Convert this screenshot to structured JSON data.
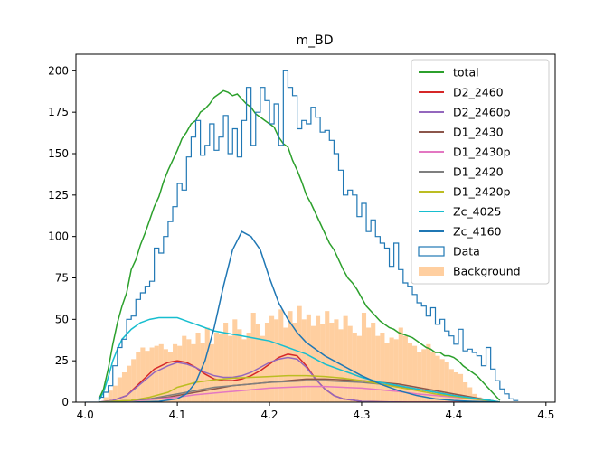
{
  "chart_data": {
    "type": "line",
    "title": "m_BD",
    "xlabel": "",
    "ylabel": "",
    "xlim": [
      3.99,
      4.51
    ],
    "ylim": [
      0,
      210
    ],
    "xticks": [
      "4.0",
      "4.1",
      "4.2",
      "4.3",
      "4.4",
      "4.5"
    ],
    "yticks": [
      "0",
      "25",
      "50",
      "75",
      "100",
      "125",
      "150",
      "175",
      "200"
    ],
    "grid": false,
    "legend_position": "top-right",
    "series": [
      {
        "name": "total",
        "color": "#2ca02c",
        "kind": "line",
        "x": [
          4.015,
          4.02,
          4.025,
          4.03,
          4.035,
          4.04,
          4.045,
          4.05,
          4.055,
          4.06,
          4.065,
          4.07,
          4.075,
          4.08,
          4.085,
          4.09,
          4.095,
          4.1,
          4.105,
          4.11,
          4.115,
          4.12,
          4.125,
          4.13,
          4.135,
          4.14,
          4.145,
          4.15,
          4.155,
          4.16,
          4.165,
          4.17,
          4.175,
          4.18,
          4.185,
          4.19,
          4.195,
          4.2,
          4.205,
          4.21,
          4.215,
          4.22,
          4.225,
          4.23,
          4.235,
          4.24,
          4.245,
          4.25,
          4.255,
          4.26,
          4.265,
          4.27,
          4.275,
          4.28,
          4.285,
          4.29,
          4.295,
          4.3,
          4.305,
          4.31,
          4.315,
          4.32,
          4.325,
          4.33,
          4.335,
          4.34,
          4.345,
          4.35,
          4.355,
          4.36,
          4.365,
          4.37,
          4.375,
          4.38,
          4.385,
          4.39,
          4.395,
          4.4,
          4.405,
          4.41,
          4.415,
          4.42,
          4.425,
          4.43,
          4.435,
          4.44,
          4.445,
          4.45
        ],
        "y": [
          2,
          8,
          20,
          35,
          48,
          58,
          66,
          80,
          86,
          95,
          102,
          110,
          118,
          124,
          133,
          140,
          146,
          152,
          159,
          163,
          168,
          170,
          175,
          177,
          180,
          184,
          186,
          188,
          187,
          185,
          186,
          183,
          180,
          178,
          174,
          172,
          170,
          168,
          166,
          160,
          156,
          154,
          146,
          140,
          133,
          125,
          120,
          114,
          108,
          102,
          96,
          92,
          86,
          80,
          75,
          72,
          68,
          63,
          58,
          55,
          52,
          49,
          47,
          45,
          44,
          42,
          41,
          40,
          39,
          37,
          35,
          33,
          32,
          30,
          30,
          28,
          28,
          27,
          25,
          22,
          20,
          18,
          16,
          13,
          10,
          7,
          4,
          1
        ]
      },
      {
        "name": "D2_2460",
        "color": "#d62728",
        "kind": "line",
        "x": [
          4.015,
          4.03,
          4.045,
          4.06,
          4.075,
          4.09,
          4.1,
          4.11,
          4.12,
          4.13,
          4.14,
          4.15,
          4.16,
          4.17,
          4.18,
          4.19,
          4.2,
          4.21,
          4.22,
          4.23,
          4.24,
          4.25,
          4.26,
          4.27,
          4.28,
          4.3,
          4.32,
          4.35,
          4.4,
          4.45
        ],
        "y": [
          0,
          1,
          4,
          12,
          20,
          24,
          25,
          24,
          21,
          17,
          14,
          13,
          13,
          14,
          16,
          19,
          23,
          27,
          29,
          28,
          22,
          14,
          8,
          4,
          2,
          0.5,
          0.2,
          0,
          0,
          0
        ]
      },
      {
        "name": "D2_2460p",
        "color": "#9467bd",
        "kind": "line",
        "x": [
          4.015,
          4.03,
          4.045,
          4.06,
          4.075,
          4.09,
          4.1,
          4.11,
          4.12,
          4.13,
          4.14,
          4.15,
          4.16,
          4.17,
          4.18,
          4.19,
          4.2,
          4.21,
          4.22,
          4.23,
          4.24,
          4.25,
          4.26,
          4.27,
          4.28,
          4.3,
          4.32,
          4.35,
          4.4,
          4.45
        ],
        "y": [
          0,
          1,
          4,
          11,
          18,
          22,
          24,
          23,
          21,
          18,
          16,
          15,
          15,
          16,
          18,
          21,
          24,
          26,
          27,
          26,
          21,
          14,
          8,
          4,
          2,
          0.5,
          0.2,
          0,
          0,
          0
        ]
      },
      {
        "name": "D1_2430",
        "color": "#8c564b",
        "kind": "line",
        "x": [
          4.015,
          4.03,
          4.05,
          4.07,
          4.09,
          4.1,
          4.12,
          4.14,
          4.16,
          4.18,
          4.2,
          4.22,
          4.24,
          4.26,
          4.28,
          4.3,
          4.32,
          4.34,
          4.36,
          4.38,
          4.4,
          4.42,
          4.44,
          4.45
        ],
        "y": [
          0,
          0.5,
          1,
          2,
          3,
          4,
          6,
          8,
          10,
          11,
          12,
          13,
          14,
          14,
          13.5,
          13,
          12,
          11,
          9,
          7,
          5,
          3,
          1,
          0
        ]
      },
      {
        "name": "D1_2430p",
        "color": "#e377c2",
        "kind": "line",
        "x": [
          4.015,
          4.03,
          4.05,
          4.07,
          4.09,
          4.1,
          4.12,
          4.14,
          4.16,
          4.18,
          4.2,
          4.22,
          4.24,
          4.26,
          4.28,
          4.3,
          4.32,
          4.34,
          4.36,
          4.38,
          4.4,
          4.42,
          4.44,
          4.45
        ],
        "y": [
          0,
          0.3,
          0.8,
          1.5,
          2.5,
          3,
          4.5,
          5.5,
          6.5,
          7.5,
          8.5,
          9,
          9.5,
          9.5,
          9,
          8.5,
          7.5,
          6.5,
          5,
          4,
          3,
          2,
          0.8,
          0
        ]
      },
      {
        "name": "D1_2420",
        "color": "#7f7f7f",
        "kind": "line",
        "x": [
          4.015,
          4.03,
          4.05,
          4.07,
          4.09,
          4.1,
          4.12,
          4.14,
          4.16,
          4.18,
          4.2,
          4.22,
          4.24,
          4.26,
          4.28,
          4.3,
          4.32,
          4.34,
          4.36,
          4.38,
          4.4,
          4.42,
          4.44,
          4.45
        ],
        "y": [
          0,
          0.5,
          1,
          2,
          4,
          5,
          7,
          9,
          10,
          11,
          12,
          12.5,
          13,
          13,
          12.5,
          12,
          11,
          9.5,
          8,
          6,
          4,
          2.5,
          1,
          0
        ]
      },
      {
        "name": "D1_2420p",
        "color": "#bcbd22",
        "kind": "line",
        "x": [
          4.015,
          4.03,
          4.05,
          4.07,
          4.09,
          4.1,
          4.12,
          4.14,
          4.16,
          4.18,
          4.2,
          4.22,
          4.24,
          4.26,
          4.28,
          4.3,
          4.32,
          4.34,
          4.36,
          4.38,
          4.4,
          4.42,
          4.44,
          4.45
        ],
        "y": [
          0,
          0.5,
          1,
          3,
          6,
          9,
          12,
          13.5,
          14.5,
          15,
          15.5,
          16,
          16,
          15.5,
          14.5,
          13,
          11,
          9,
          7,
          5,
          3.5,
          2,
          0.8,
          0
        ]
      },
      {
        "name": "Zc_4025",
        "color": "#17becf",
        "kind": "line",
        "x": [
          4.015,
          4.02,
          4.025,
          4.03,
          4.035,
          4.04,
          4.05,
          4.06,
          4.07,
          4.08,
          4.09,
          4.1,
          4.11,
          4.12,
          4.13,
          4.14,
          4.15,
          4.16,
          4.17,
          4.18,
          4.19,
          4.2,
          4.21,
          4.22,
          4.23,
          4.24,
          4.25,
          4.26,
          4.27,
          4.28,
          4.3,
          4.32,
          4.34,
          4.36,
          4.38,
          4.4,
          4.42,
          4.44,
          4.45
        ],
        "y": [
          1,
          6,
          15,
          25,
          32,
          38,
          44,
          48,
          50,
          51,
          51,
          51,
          49,
          47,
          45,
          43,
          42,
          41,
          40,
          39,
          38,
          37,
          35,
          33,
          31,
          29,
          26,
          23,
          21,
          19,
          15,
          12,
          10,
          8,
          6,
          4,
          2.5,
          1,
          0
        ]
      },
      {
        "name": "Zc_4160",
        "color": "#1f77b4",
        "kind": "line",
        "x": [
          4.015,
          4.05,
          4.08,
          4.1,
          4.11,
          4.12,
          4.13,
          4.14,
          4.15,
          4.16,
          4.17,
          4.18,
          4.19,
          4.2,
          4.21,
          4.22,
          4.23,
          4.24,
          4.25,
          4.26,
          4.27,
          4.28,
          4.29,
          4.3,
          4.32,
          4.34,
          4.36,
          4.38,
          4.4,
          4.42,
          4.44,
          4.45
        ],
        "y": [
          0,
          0,
          0.5,
          2,
          5,
          12,
          25,
          45,
          70,
          92,
          103,
          100,
          92,
          75,
          60,
          50,
          42,
          36,
          32,
          28,
          25,
          22,
          19,
          16,
          11,
          7,
          4,
          2,
          1,
          0.5,
          0.2,
          0
        ]
      }
    ],
    "histograms": [
      {
        "name": "Data",
        "color": "#1f77b4",
        "kind": "step",
        "bin_start": 4.0,
        "bin_width": 0.005,
        "values": [
          0,
          0,
          0,
          3,
          6,
          10,
          22,
          33,
          38,
          50,
          52,
          62,
          66,
          70,
          73,
          93,
          90,
          100,
          109,
          118,
          132,
          128,
          148,
          160,
          170,
          149,
          155,
          168,
          152,
          160,
          173,
          150,
          165,
          148,
          170,
          190,
          155,
          175,
          190,
          182,
          168,
          180,
          155,
          200,
          190,
          185,
          165,
          170,
          168,
          178,
          172,
          163,
          164,
          158,
          150,
          140,
          125,
          128,
          125,
          112,
          120,
          103,
          110,
          100,
          96,
          93,
          82,
          96,
          80,
          72,
          70,
          65,
          60,
          58,
          52,
          57,
          47,
          50,
          43,
          40,
          35,
          44,
          31,
          32,
          30,
          28,
          22,
          33,
          20,
          13,
          8,
          5,
          2,
          1
        ]
      },
      {
        "name": "Background",
        "color": "#ffbb78",
        "kind": "filled",
        "bin_start": 4.0,
        "bin_width": 0.005,
        "values": [
          0,
          0,
          0,
          0,
          3,
          7,
          10,
          15,
          18,
          22,
          26,
          30,
          33,
          31,
          33,
          34,
          35,
          32,
          30,
          35,
          34,
          40,
          38,
          35,
          42,
          36,
          45,
          35,
          42,
          41,
          48,
          40,
          50,
          44,
          38,
          42,
          54,
          47,
          40,
          48,
          52,
          50,
          56,
          45,
          55,
          48,
          58,
          50,
          53,
          46,
          52,
          47,
          55,
          48,
          50,
          44,
          52,
          46,
          42,
          40,
          54,
          45,
          48,
          40,
          42,
          36,
          39,
          38,
          45,
          40,
          36,
          34,
          30,
          32,
          35,
          30,
          28,
          26,
          24,
          20,
          18,
          17,
          12,
          9,
          5,
          3,
          1,
          0
        ]
      }
    ]
  }
}
